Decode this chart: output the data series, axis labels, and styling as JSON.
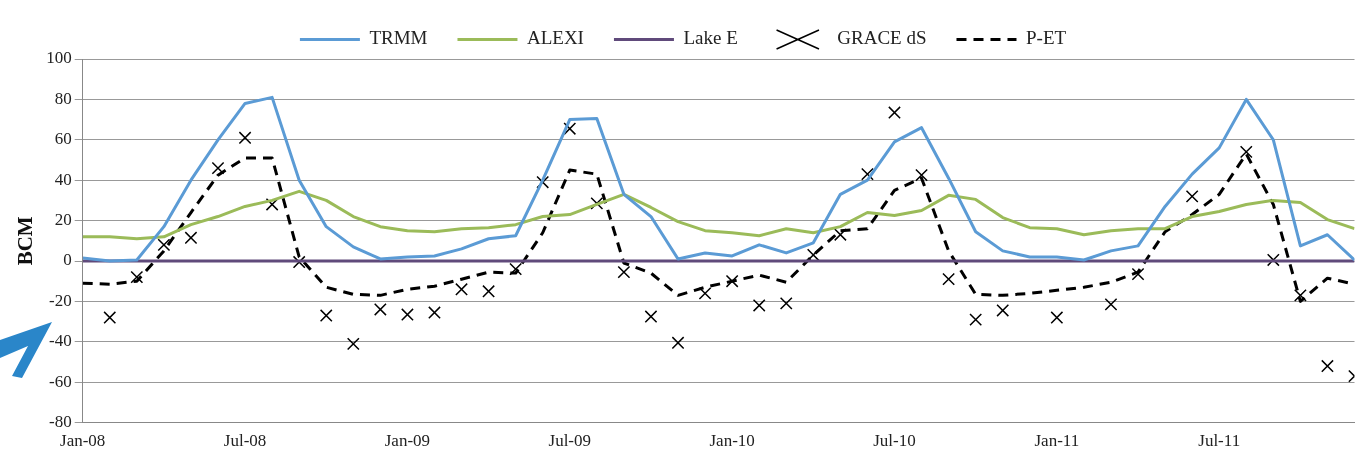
{
  "chart_data": {
    "type": "line",
    "ylabel": "BCM",
    "x": [
      "2008-01",
      "2008-02",
      "2008-03",
      "2008-04",
      "2008-05",
      "2008-06",
      "2008-07",
      "2008-08",
      "2008-09",
      "2008-10",
      "2008-11",
      "2008-12",
      "2009-01",
      "2009-02",
      "2009-03",
      "2009-04",
      "2009-05",
      "2009-06",
      "2009-07",
      "2009-08",
      "2009-09",
      "2009-10",
      "2009-11",
      "2009-12",
      "2010-01",
      "2010-02",
      "2010-03",
      "2010-04",
      "2010-05",
      "2010-06",
      "2010-07",
      "2010-08",
      "2010-09",
      "2010-10",
      "2010-11",
      "2010-12",
      "2011-01",
      "2011-02",
      "2011-03",
      "2011-04",
      "2011-05",
      "2011-06",
      "2011-07",
      "2011-08",
      "2011-09",
      "2011-10",
      "2011-11",
      "2011-12"
    ],
    "series": [
      {
        "name": "TRMM",
        "color": "#5b9bd5",
        "values": [
          1.5,
          0,
          0.5,
          17,
          40,
          60,
          78,
          81,
          40,
          17,
          7,
          1,
          2,
          2.5,
          6,
          11,
          12.5,
          40,
          70,
          70.5,
          33,
          22,
          1,
          4,
          2.5,
          8,
          4,
          9,
          33,
          40,
          59,
          66,
          41,
          14.5,
          5,
          2,
          2,
          0.5,
          5,
          7.5,
          27,
          43,
          56,
          80,
          60,
          7.5,
          13,
          0.5
        ]
      },
      {
        "name": "ALEXI",
        "color": "#9bbb59",
        "values": [
          12,
          12,
          11,
          12,
          18,
          22,
          27,
          30,
          34.5,
          30,
          22,
          17,
          15,
          14.5,
          16,
          16.5,
          18,
          22,
          23,
          28,
          33,
          26.5,
          19.5,
          15,
          14,
          12.5,
          16,
          14,
          17,
          24,
          22.5,
          25,
          32.5,
          30.5,
          21.5,
          16.5,
          16,
          13,
          15,
          16,
          16,
          22,
          24.5,
          28,
          30,
          29,
          20.5,
          16
        ]
      },
      {
        "name": "Lake E",
        "color": "#604a7b",
        "values": [
          0,
          0,
          0,
          0,
          0,
          0,
          0,
          0,
          0,
          0,
          0,
          0,
          0,
          0,
          0,
          0,
          0,
          0,
          0,
          0,
          0,
          0,
          0,
          0,
          0,
          0,
          0,
          0,
          0,
          0,
          0,
          0,
          0,
          0,
          0,
          0,
          0,
          0,
          0,
          0,
          0,
          0,
          0,
          0,
          0,
          0,
          0,
          0
        ]
      },
      {
        "name": "GRACE dS",
        "color": "#000000",
        "type": "scatter",
        "marker": "cross",
        "values": [
          null,
          -28,
          -8,
          8,
          11.5,
          46,
          61,
          28,
          -0.5,
          -27,
          -41,
          -24,
          -26.5,
          -25.5,
          -14,
          -15,
          -4,
          39,
          65.5,
          28.5,
          -5.5,
          -27.5,
          -40.5,
          -16,
          -10,
          -22,
          -21,
          3,
          13,
          43,
          73.5,
          42.5,
          -9,
          -29,
          -24.5,
          null,
          -28,
          null,
          -21.5,
          -6.5,
          null,
          32,
          null,
          54,
          0.5,
          -17,
          -52,
          -57
        ]
      },
      {
        "name": "P-ET",
        "color": "#000000",
        "line_style": "dashed",
        "values": [
          -11,
          -11.5,
          -10,
          5,
          24,
          42.5,
          51,
          51,
          2,
          -13,
          -16.5,
          -17,
          -14,
          -12.5,
          -9,
          -5.5,
          -6,
          14,
          45,
          43,
          -1,
          -6,
          -17,
          -13,
          -10,
          -7,
          -10.5,
          3,
          15,
          16,
          35,
          41,
          5,
          -16.5,
          -17,
          -16,
          -14.5,
          -13,
          -10.5,
          -5.5,
          14.5,
          23,
          33,
          53,
          28,
          -20,
          -8.5,
          -11.5
        ]
      }
    ],
    "xlim": [
      "2008-01",
      "2011-12"
    ],
    "xticks": [
      {
        "value": "2008-01",
        "label": "Jan-08"
      },
      {
        "value": "2008-07",
        "label": "Jul-08"
      },
      {
        "value": "2009-01",
        "label": "Jan-09"
      },
      {
        "value": "2009-07",
        "label": "Jul-09"
      },
      {
        "value": "2010-01",
        "label": "Jan-10"
      },
      {
        "value": "2010-07",
        "label": "Jul-10"
      },
      {
        "value": "2011-01",
        "label": "Jan-11"
      },
      {
        "value": "2011-07",
        "label": "Jul-11"
      }
    ],
    "ylim": [
      -80,
      100
    ],
    "yticks": [
      -80,
      -60,
      -40,
      -20,
      0,
      20,
      40,
      60,
      80,
      100
    ],
    "grid": "y",
    "legend": "top",
    "marker": "none",
    "line_style": "solid"
  }
}
